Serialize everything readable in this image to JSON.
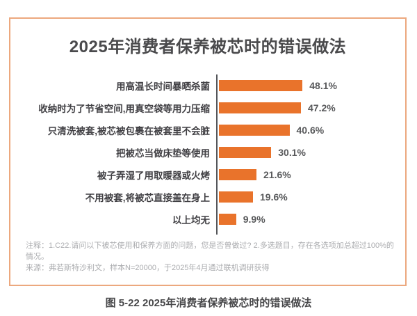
{
  "chart": {
    "title": "2025年消费者保养被芯时的错误做法"
  },
  "chart_data": {
    "type": "bar",
    "orientation": "horizontal",
    "title": "2025年消费者保养被芯时的错误做法",
    "categories": [
      "用高温长时间暴晒杀菌",
      "收纳时为了节省空间,用真空袋等用力压缩",
      "只清洗被套,被芯被包裹在被套里不会脏",
      "把被芯当做床垫等使用",
      "被子弄湿了用取暖器或火烤",
      "不用被套,将被芯直接盖在身上",
      "以上均无"
    ],
    "values": [
      48.1,
      47.2,
      40.6,
      30.1,
      21.6,
      19.6,
      9.9
    ],
    "value_suffix": "%",
    "xlim": [
      0,
      100
    ],
    "grid": false,
    "legend": "none",
    "value_labels_position": "right-of-bar"
  },
  "notes": {
    "note": "注释：1.C22.请问以下被芯使用和保养方面的问题，您是否曾做过? 2.多选题目，存在各选项加总超过100%的情况。",
    "source": "来源：弗若斯特沙利文，样本N=20000，于2025年4月通过联机调研获得"
  },
  "caption": "图 5-22  2025年消费者保养被芯时的错误做法",
  "colors": {
    "bar": "#E9732B",
    "card_border": "#ECA87E",
    "axis": "#55565A",
    "title_text": "#4A4A4C",
    "category_text": "#414044",
    "value_text": "#58595B",
    "note_text": "#ABACAF"
  }
}
